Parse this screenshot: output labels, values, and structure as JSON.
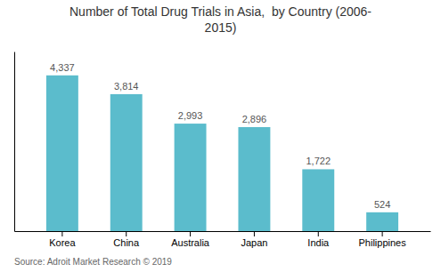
{
  "chart_data": {
    "type": "bar",
    "title": "Number of Total Drug Trials in Asia,  by Country (2006-\n2015)",
    "categories": [
      "Korea",
      "China",
      "Australia",
      "Japan",
      "India",
      "Philippines"
    ],
    "values": [
      4337,
      3814,
      2993,
      2896,
      1722,
      524
    ],
    "value_labels": [
      "4,337",
      "3,814",
      "2,993",
      "2,896",
      "1,722",
      "524"
    ],
    "data_labels": true,
    "color": "#5bbccc",
    "ylim": [
      0,
      5000
    ],
    "tick_labels": "x",
    "grid": false,
    "annotations": [
      "Source: Adroit Market Research © 2019"
    ]
  }
}
